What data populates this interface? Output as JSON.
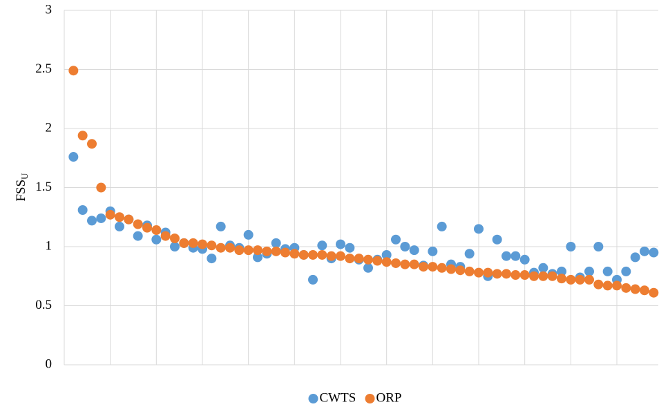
{
  "chart_data": {
    "type": "scatter",
    "y_label": {
      "text": "FSS",
      "subscript": "U"
    },
    "x": [
      1,
      2,
      3,
      4,
      5,
      6,
      7,
      8,
      9,
      10,
      11,
      12,
      13,
      14,
      15,
      16,
      17,
      18,
      19,
      20,
      21,
      22,
      23,
      24,
      25,
      26,
      27,
      28,
      29,
      30,
      31,
      32,
      33,
      34,
      35,
      36,
      37,
      38,
      39,
      40,
      41,
      42,
      43,
      44,
      45,
      46,
      47,
      48,
      49,
      50,
      51,
      52,
      53,
      54,
      55,
      56,
      57,
      58,
      59,
      60,
      61,
      62,
      63,
      64
    ],
    "xlim": [
      0,
      64.5
    ],
    "xticks": [
      0,
      5,
      10,
      15,
      20,
      25,
      30,
      35,
      40,
      45,
      50,
      55,
      60
    ],
    "ylim": [
      0,
      3
    ],
    "yticks": [
      0,
      0.5,
      1,
      1.5,
      2,
      2.5,
      3
    ],
    "grid": true,
    "legend": "bottom",
    "series": [
      {
        "name": "CWTS",
        "color": "#5b9bd5",
        "values": [
          1.76,
          1.31,
          1.22,
          1.24,
          1.3,
          1.17,
          1.23,
          1.09,
          1.18,
          1.06,
          1.12,
          1.0,
          1.03,
          0.99,
          0.98,
          0.9,
          1.17,
          1.01,
          0.99,
          1.1,
          0.91,
          0.94,
          1.03,
          0.98,
          0.99,
          0.93,
          0.72,
          1.01,
          0.9,
          1.02,
          0.99,
          0.89,
          0.82,
          0.89,
          0.93,
          1.06,
          1.0,
          0.97,
          0.84,
          0.96,
          1.17,
          0.85,
          0.83,
          0.94,
          1.15,
          0.75,
          1.06,
          0.92,
          0.92,
          0.89,
          0.78,
          0.82,
          0.77,
          0.79,
          1.0,
          0.74,
          0.79,
          1.0,
          0.79,
          0.72,
          0.79,
          0.91,
          0.96,
          0.95
        ]
      },
      {
        "name": "ORP",
        "color": "#ed7d31",
        "values": [
          2.49,
          1.94,
          1.87,
          1.5,
          1.27,
          1.25,
          1.23,
          1.19,
          1.16,
          1.14,
          1.09,
          1.07,
          1.03,
          1.03,
          1.02,
          1.01,
          0.99,
          0.99,
          0.97,
          0.97,
          0.97,
          0.96,
          0.96,
          0.95,
          0.94,
          0.93,
          0.93,
          0.93,
          0.92,
          0.92,
          0.9,
          0.9,
          0.89,
          0.88,
          0.87,
          0.86,
          0.85,
          0.85,
          0.83,
          0.83,
          0.82,
          0.81,
          0.8,
          0.79,
          0.78,
          0.78,
          0.77,
          0.77,
          0.76,
          0.76,
          0.75,
          0.75,
          0.75,
          0.73,
          0.72,
          0.72,
          0.72,
          0.68,
          0.67,
          0.67,
          0.65,
          0.64,
          0.63,
          0.61
        ]
      }
    ]
  }
}
